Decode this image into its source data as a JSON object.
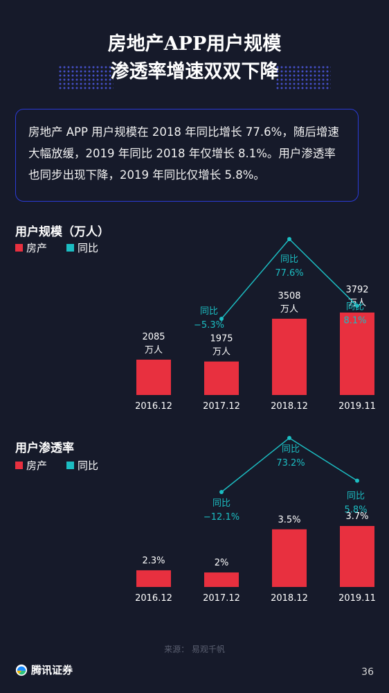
{
  "title_line1": "房地产APP用户规模",
  "title_line2": "渗透率增速双双下降",
  "summary": "房地产 APP 用户规模在 2018 年同比增长 77.6%，随后增速大幅放缓，2019 年同比 2018 年仅增长 8.1%。用户渗透率也同步出现下降，2019 年同比仅增长 5.8%。",
  "source": "来源：  易观千帆",
  "brand": "腾讯证券",
  "page_number": "36",
  "colors": {
    "bar": "#e8303f",
    "line": "#1cbdc2",
    "background": "#161a2a",
    "box_border": "#2b3bd6"
  },
  "chart_data": [
    {
      "type": "bar",
      "title": "用户规模（万人）",
      "legend": [
        "房产",
        "同比"
      ],
      "categories": [
        "2016.12",
        "2017.12",
        "2018.12",
        "2019.11"
      ],
      "series": [
        {
          "name": "房产",
          "type": "bar",
          "values": [
            2085,
            1975,
            3508,
            3792
          ],
          "labels": [
            [
              "2085",
              "万人"
            ],
            [
              "1975",
              "万人"
            ],
            [
              "3508",
              "万人"
            ],
            [
              "3792",
              "万人"
            ]
          ]
        },
        {
          "name": "同比",
          "type": "line",
          "values": [
            null,
            -5.3,
            77.6,
            8.1
          ],
          "labels": [
            null,
            [
              "同比",
              "−5.3%"
            ],
            [
              "同比",
              "77.6%"
            ],
            [
              "同比",
              "8.1%"
            ]
          ]
        }
      ]
    },
    {
      "type": "bar",
      "title": "用户渗透率",
      "legend": [
        "房产",
        "同比"
      ],
      "categories": [
        "2016.12",
        "2017.12",
        "2018.12",
        "2019.11"
      ],
      "series": [
        {
          "name": "房产",
          "type": "bar",
          "values": [
            2.3,
            2.0,
            3.5,
            3.7
          ],
          "labels": [
            [
              "2.3%"
            ],
            [
              "2%"
            ],
            [
              "3.5%"
            ],
            [
              "3.7%"
            ]
          ]
        },
        {
          "name": "同比",
          "type": "line",
          "values": [
            null,
            -12.1,
            73.2,
            5.8
          ],
          "labels": [
            null,
            [
              "同比",
              "−12.1%"
            ],
            [
              "同比",
              "73.2%"
            ],
            [
              "同比",
              "5.8%"
            ]
          ]
        }
      ]
    }
  ]
}
